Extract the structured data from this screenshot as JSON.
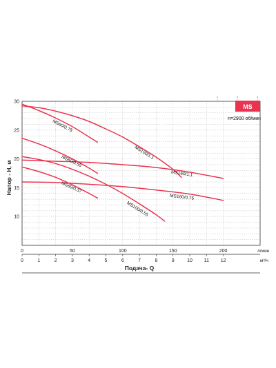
{
  "chart_data": {
    "type": "line",
    "title": "",
    "xlabel": "Подача- Q",
    "ylabel": "Напор - Н, м",
    "x_unit_top": "л/мин",
    "x_unit_bottom": "м³/ч",
    "x_ticks_lpm": [
      "0",
      "50",
      "100",
      "150",
      "200"
    ],
    "x_ticks_m3h": [
      "0",
      "1",
      "2",
      "3",
      "4",
      "5",
      "6",
      "7",
      "8",
      "9",
      "10",
      "11",
      "12"
    ],
    "y_ticks": [
      "10",
      "15",
      "20",
      "25",
      "30"
    ],
    "xlim": [
      0,
      12.5
    ],
    "ylim": [
      5,
      30
    ],
    "grid": true,
    "badge": "MS",
    "speed": "n=2900 об/мин",
    "top_marks": [
      "1",
      "2",
      "3"
    ],
    "series": [
      {
        "name": "MS60/0.75",
        "x": [
          0,
          1,
          2,
          3,
          4,
          4.5
        ],
        "y": [
          29.5,
          28.4,
          27.1,
          25.6,
          23.8,
          22.9
        ]
      },
      {
        "name": "MS100/1.1",
        "x": [
          0,
          1,
          2,
          3,
          4,
          5,
          6,
          7,
          8,
          9,
          9.5
        ],
        "y": [
          29.2,
          28.9,
          28.3,
          27.5,
          26.5,
          25.2,
          23.8,
          22.1,
          20.3,
          18.2,
          16.8
        ]
      },
      {
        "name": "MS160/1.1",
        "x": [
          0,
          2,
          4,
          6,
          8,
          10,
          12
        ],
        "y": [
          19.8,
          19.6,
          19.4,
          19.0,
          18.5,
          17.7,
          16.6
        ]
      },
      {
        "name": "MS60/0.55",
        "x": [
          0,
          1,
          2,
          3,
          4,
          4.5
        ],
        "y": [
          23.6,
          22.6,
          21.4,
          20.0,
          18.4,
          17.5
        ]
      },
      {
        "name": "MS160/0.75",
        "x": [
          0,
          2,
          4,
          6,
          8,
          10,
          12
        ],
        "y": [
          16.0,
          15.9,
          15.6,
          15.2,
          14.6,
          13.9,
          12.8
        ]
      },
      {
        "name": "MS100/0.55",
        "x": [
          0,
          1,
          2,
          3,
          4,
          5,
          6,
          7,
          8,
          8.5
        ],
        "y": [
          20.4,
          19.9,
          19.2,
          18.2,
          17.0,
          15.6,
          14.0,
          12.2,
          10.3,
          9.2
        ]
      },
      {
        "name": "MS60/0.37",
        "x": [
          0,
          1,
          2,
          3,
          4,
          4.5
        ],
        "y": [
          18.6,
          17.8,
          16.8,
          15.5,
          14.0,
          13.2
        ]
      }
    ]
  },
  "colors": {
    "curve": "#e8344f",
    "badge": "#e8344f",
    "grid": "#9a9a9a",
    "axis": "#333333"
  }
}
